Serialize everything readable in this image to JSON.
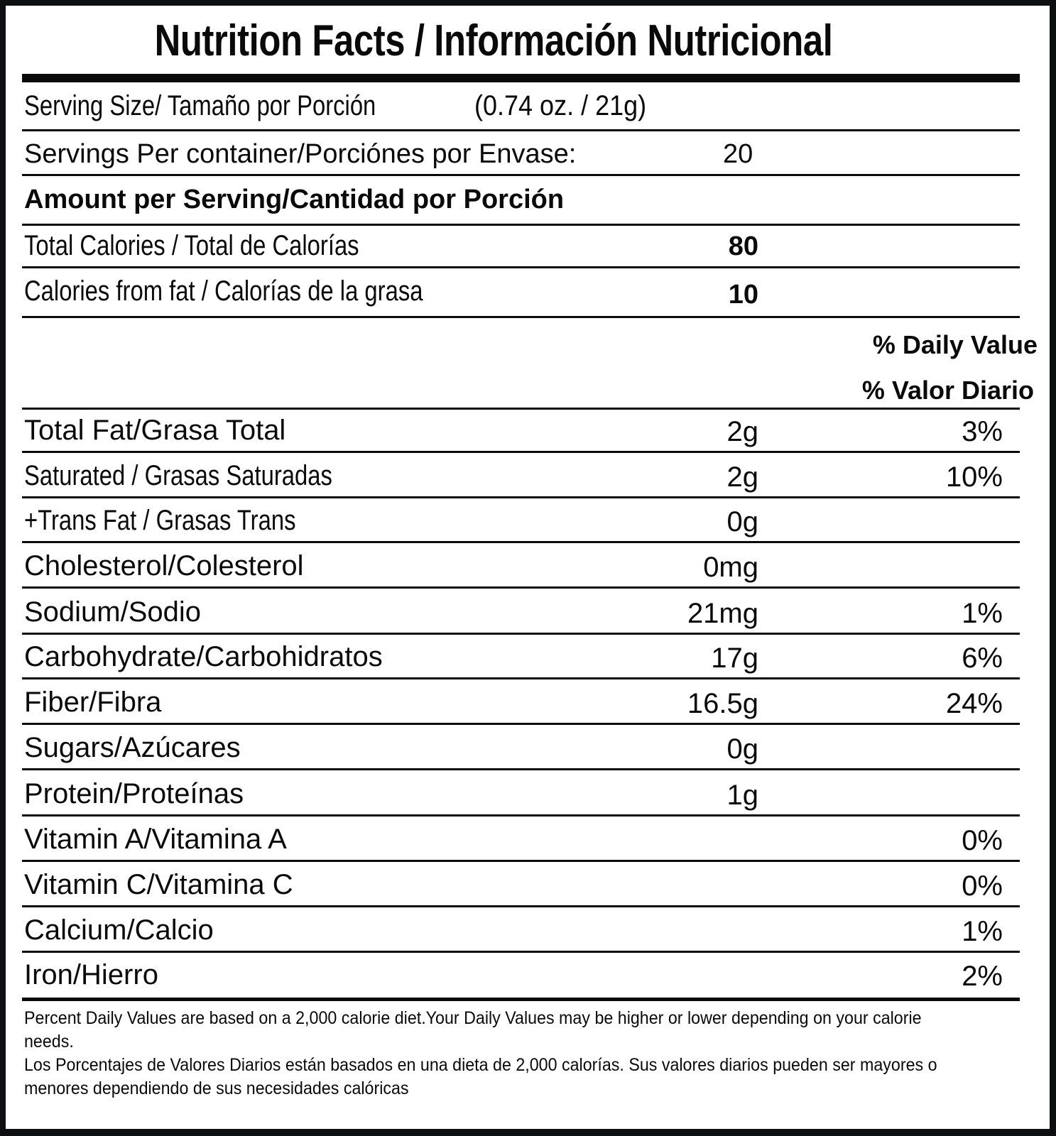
{
  "title": "Nutrition Facts / Información Nutricional",
  "serving_size": {
    "label": "Serving Size/ Tamaño por Porción",
    "value": "(0.74 oz. / 21g)"
  },
  "servings_per_container": {
    "label": "Servings Per container/Porciónes por Envase:",
    "value": "20"
  },
  "amount_header": "Amount per Serving/Cantidad por Porción",
  "calories": {
    "label": "Total Calories / Total de Calorías",
    "value": "80"
  },
  "calories_fat": {
    "label": "Calories from fat / Calorías de la grasa",
    "value": "10"
  },
  "daily_value_header": {
    "en": "% Daily Value",
    "es": "% Valor Diario"
  },
  "nutrients": [
    {
      "label": "Total Fat/Grasa Total",
      "amount": "2g",
      "dv": "3%"
    },
    {
      "label": "Saturated / Grasas Saturadas",
      "amount": "2g",
      "dv": "10%"
    },
    {
      "label": "+Trans Fat / Grasas Trans",
      "amount": "0g",
      "dv": ""
    },
    {
      "label": "Cholesterol/Colesterol",
      "amount": "0mg",
      "dv": ""
    },
    {
      "label": "Sodium/Sodio",
      "amount": "21mg",
      "dv": "1%"
    },
    {
      "label": "Carbohydrate/Carbohidratos",
      "amount": "17g",
      "dv": "6%"
    },
    {
      "label": "Fiber/Fibra",
      "amount": "16.5g",
      "dv": "24%"
    },
    {
      "label": "Sugars/Azúcares",
      "amount": "0g",
      "dv": ""
    },
    {
      "label": "Protein/Proteínas",
      "amount": "1g",
      "dv": ""
    },
    {
      "label": "Vitamin A/Vitamina A",
      "amount": "",
      "dv": "0%"
    },
    {
      "label": "Vitamin C/Vitamina C",
      "amount": "",
      "dv": "0%"
    },
    {
      "label": "Calcium/Calcio",
      "amount": "",
      "dv": "1%"
    },
    {
      "label": "Iron/Hierro",
      "amount": "",
      "dv": "2%"
    }
  ],
  "footnote": {
    "en": "Percent Daily Values are based on a 2,000 calorie diet.Your Daily Values may be higher or lower depending on your calorie needs.",
    "es": "Los Porcentajes de Valores Diarios están basados en una dieta de 2,000 calorías. Sus valores diarios pueden ser mayores o menores dependiendo de sus necesidades calóricas"
  }
}
